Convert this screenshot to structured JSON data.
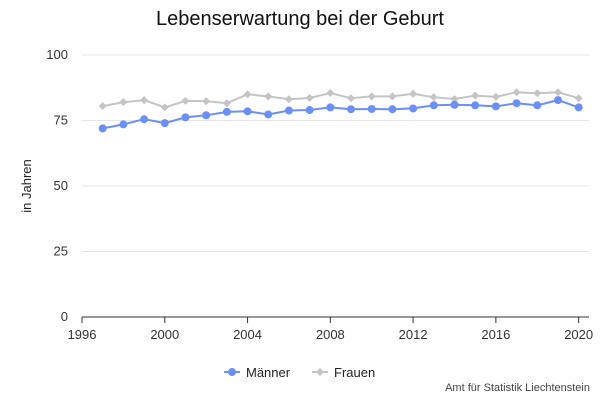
{
  "chart_data": {
    "type": "line",
    "title": "Lebenserwartung bei der Geburt",
    "xlabel": "",
    "ylabel": "in Jahren",
    "xlim": [
      1996,
      2020.5
    ],
    "ylim": [
      0,
      100
    ],
    "xticks": [
      1996,
      2000,
      2004,
      2008,
      2012,
      2016,
      2020
    ],
    "yticks": [
      0,
      25,
      50,
      75,
      100
    ],
    "grid": "horizontal",
    "legend": "bottom-center",
    "x": [
      1997,
      1998,
      1999,
      2000,
      2001,
      2002,
      2003,
      2004,
      2005,
      2006,
      2007,
      2008,
      2009,
      2010,
      2011,
      2012,
      2013,
      2014,
      2015,
      2016,
      2017,
      2018,
      2019,
      2020
    ],
    "series": [
      {
        "name": "Männer",
        "color": "#6b8ff5",
        "marker": "circle",
        "values": [
          72.0,
          73.5,
          75.5,
          74.0,
          76.2,
          77.0,
          78.3,
          78.5,
          77.3,
          78.8,
          79.0,
          80.0,
          79.3,
          79.4,
          79.3,
          79.6,
          80.8,
          81.0,
          80.8,
          80.4,
          81.6,
          80.8,
          82.8,
          80.0
        ]
      },
      {
        "name": "Frauen",
        "color": "#c4c4c4",
        "marker": "diamond",
        "values": [
          80.5,
          82.0,
          82.8,
          80.0,
          82.5,
          82.4,
          81.6,
          85.0,
          84.2,
          83.1,
          83.6,
          85.5,
          83.5,
          84.2,
          84.2,
          85.2,
          83.9,
          83.2,
          84.5,
          84.0,
          85.8,
          85.4,
          85.8,
          83.5
        ]
      }
    ]
  },
  "source": "Amt für Statistik Liechtenstein"
}
